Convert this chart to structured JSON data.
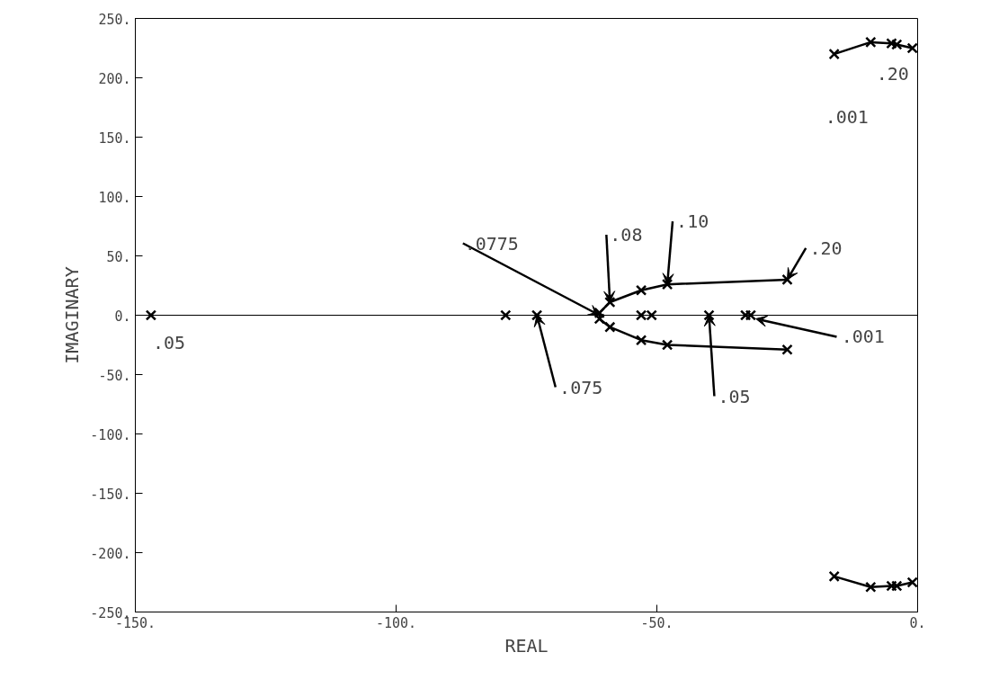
{
  "chart_data": {
    "type": "line",
    "xlabel": "REAL",
    "ylabel": "IMAGINARY",
    "xlim": [
      -150,
      0
    ],
    "ylim": [
      -250,
      250
    ],
    "xticks": [
      {
        "value": -150,
        "label": "-150."
      },
      {
        "value": -100,
        "label": "-100."
      },
      {
        "value": -50,
        "label": "-50."
      },
      {
        "value": 0,
        "label": "0."
      }
    ],
    "yticks": [
      {
        "value": 250,
        "label": "250."
      },
      {
        "value": 200,
        "label": "200."
      },
      {
        "value": 150,
        "label": "150."
      },
      {
        "value": 100,
        "label": "100."
      },
      {
        "value": 50,
        "label": "50."
      },
      {
        "value": 0,
        "label": "0."
      },
      {
        "value": -50,
        "label": "-50."
      },
      {
        "value": -100,
        "label": "-100."
      },
      {
        "value": -150,
        "label": "-150."
      },
      {
        "value": -200,
        "label": "-200."
      },
      {
        "value": -250,
        "label": "-250."
      }
    ],
    "grid": false,
    "marker": "cross",
    "line_style": "solid",
    "series": [
      {
        "color": "#000000",
        "x": [
          -25,
          -48,
          -53,
          -59,
          -61,
          -61,
          -59,
          -53,
          -48,
          -25
        ],
        "values": [
          30,
          26,
          21,
          11,
          2,
          -3,
          -10,
          -21,
          -25,
          -29
        ]
      },
      {
        "color": "#000000",
        "x": [
          -16,
          -9,
          -5,
          -4,
          -1
        ],
        "values": [
          220,
          230,
          229,
          228,
          225
        ]
      },
      {
        "color": "#000000",
        "x": [
          -16,
          -9,
          -5,
          -4,
          -1
        ],
        "values": [
          -220,
          -229,
          -228,
          -228,
          -225
        ]
      },
      {
        "type": "scatter",
        "color": "#000000",
        "x": [
          -147,
          -79,
          -73,
          -53,
          -51,
          -40,
          -33,
          -32
        ],
        "values": [
          0,
          0,
          0,
          0,
          0,
          0,
          0,
          0
        ]
      }
    ],
    "ref_lines": [
      {
        "axis": "y",
        "value": 0,
        "color": "#000000"
      }
    ],
    "annotations": [
      {
        "text": ".05",
        "x": -147,
        "y": 0
      },
      {
        "text": ".075",
        "x": -73,
        "y": 0
      },
      {
        "text": ".0775",
        "x": -61,
        "y": 0
      },
      {
        "text": ".08",
        "x": -59,
        "y": 11
      },
      {
        "text": ".10",
        "x": -48,
        "y": 26
      },
      {
        "text": ".20",
        "x": -25,
        "y": 30
      },
      {
        "text": ".001",
        "x": -31,
        "y": -3
      },
      {
        "text": ".05",
        "x": -40,
        "y": 0
      },
      {
        "text": ".001",
        "x": -16,
        "y": 220
      },
      {
        "text": ".20",
        "x": -1,
        "y": 225
      }
    ]
  }
}
